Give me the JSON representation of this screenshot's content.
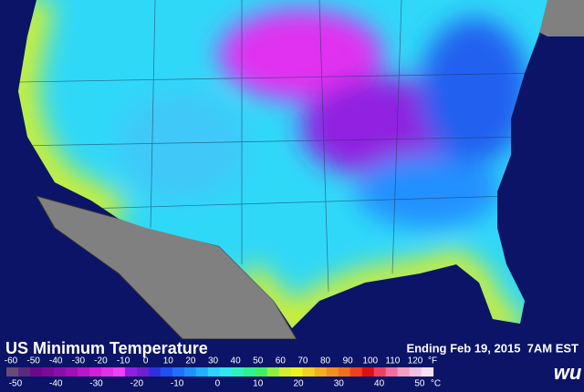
{
  "header": {
    "title": "US Minimum Temperature",
    "period": "Ending Feb 19, 2015  7AM EST"
  },
  "legend": {
    "fahrenheit": {
      "unit": "°F",
      "ticks": [
        -60,
        -50,
        -40,
        -30,
        -20,
        -10,
        0,
        10,
        20,
        30,
        40,
        50,
        60,
        70,
        80,
        90,
        100,
        110,
        120
      ]
    },
    "celsius": {
      "unit": "°C",
      "ticks": [
        -50,
        -40,
        -30,
        -20,
        -10,
        0,
        10,
        20,
        30,
        40,
        50
      ]
    },
    "colors": [
      "#6a4a7a",
      "#5a2a80",
      "#6a0a8a",
      "#7a0a9a",
      "#8a10aa",
      "#a010b8",
      "#b818c8",
      "#d020d8",
      "#e030e8",
      "#f040f8",
      "#9020e0",
      "#7020d0",
      "#3030e0",
      "#2050f0",
      "#2070ff",
      "#2090ff",
      "#20b0ff",
      "#30d0ff",
      "#30e8f0",
      "#30f0c0",
      "#30f090",
      "#40f060",
      "#90f040",
      "#d0f030",
      "#f0f020",
      "#f0d020",
      "#f0b020",
      "#f09020",
      "#f07020",
      "#f04020",
      "#e01010",
      "#f04060",
      "#f070a0",
      "#f0a0c0",
      "#f0c0e0",
      "#f8e0f0"
    ]
  },
  "logo": "wu"
}
